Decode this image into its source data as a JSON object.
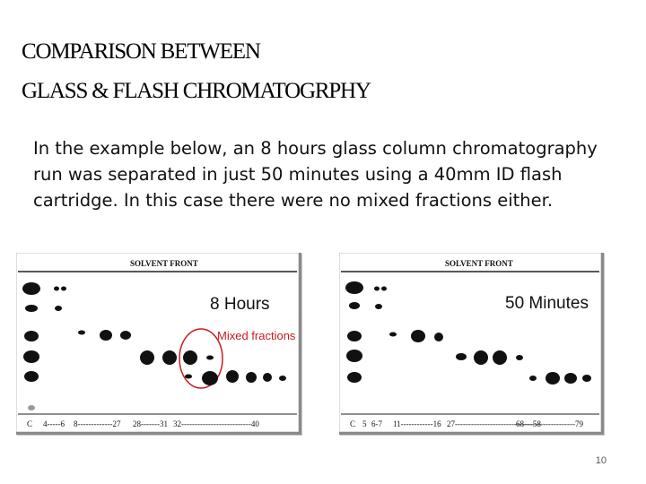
{
  "slide": {
    "title_line1": "COMPARISON BETWEEN",
    "title_line2": "GLASS & FLASH CHROMATOGRPHY",
    "body": "In the example below, an 8 hours glass column chromatography run was separated in just 50 minutes using a 40mm ID flash cartridge. In this case there were no mixed fractions either.",
    "page_number": "10"
  },
  "plates": [
    {
      "solvent_front": "SOLVENT FRONT",
      "duration": "8 Hours",
      "annotation": "Mixed fractions",
      "axis_labels": [
        "C",
        "4-----6",
        "8-------------27",
        "28-------31",
        "32--------------------------40"
      ]
    },
    {
      "solvent_front": "SOLVENT FRONT",
      "duration": "50 Minutes",
      "axis_labels": [
        "C",
        "5",
        "6-7",
        "11------------16",
        "27-----------------------------58",
        "68-------------------79"
      ]
    }
  ],
  "colors": {
    "spot": "#111111",
    "annotation": "#cc1a1a",
    "frame": "#8a8a8a"
  }
}
